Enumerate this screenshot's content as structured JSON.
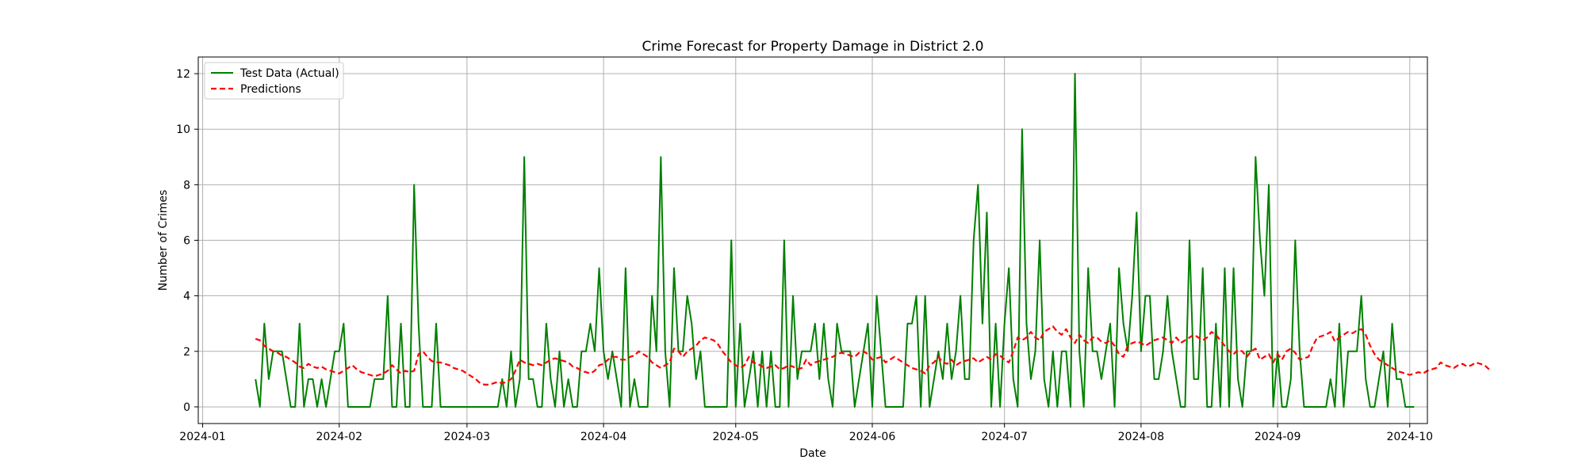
{
  "chart_data": {
    "type": "line",
    "title": "Crime Forecast for Property Damage in District 2.0",
    "xlabel": "Date",
    "ylabel": "Number of Crimes",
    "x_start": "2024-01-13",
    "x_ticks": [
      "2024-01",
      "2024-02",
      "2024-03",
      "2024-04",
      "2024-05",
      "2024-06",
      "2024-07",
      "2024-08",
      "2024-09",
      "2024-10"
    ],
    "y_ticks": [
      0,
      2,
      4,
      6,
      8,
      10,
      12
    ],
    "xlim": [
      "2023-12-31",
      "2024-10-05"
    ],
    "ylim": [
      -0.6,
      12.6
    ],
    "grid": true,
    "legend_position": "top-left",
    "colors": {
      "actual": "#008000",
      "predictions": "#ff0000",
      "grid": "#b0b0b0"
    },
    "series": [
      {
        "name": "Test Data (Actual)",
        "style": "solid",
        "values": [
          1,
          0,
          3,
          1,
          2,
          2,
          2,
          1,
          0,
          0,
          3,
          0,
          1,
          1,
          0,
          1,
          0,
          1,
          2,
          2,
          3,
          0,
          0,
          0,
          0,
          0,
          0,
          1,
          1,
          1,
          4,
          0,
          0,
          3,
          0,
          0,
          8,
          3,
          0,
          0,
          0,
          3,
          0,
          0,
          0,
          0,
          0,
          0,
          0,
          0,
          0,
          0,
          0,
          0,
          0,
          0,
          1,
          0,
          2,
          0,
          1,
          9,
          1,
          1,
          0,
          0,
          3,
          1,
          0,
          2,
          0,
          1,
          0,
          0,
          2,
          2,
          3,
          2,
          5,
          2,
          1,
          2,
          1,
          0,
          5,
          0,
          1,
          0,
          0,
          0,
          4,
          2,
          9,
          2,
          0,
          5,
          2,
          2,
          4,
          3,
          1,
          2,
          0,
          0,
          0,
          0,
          0,
          0,
          6,
          0,
          3,
          0,
          1,
          2,
          0,
          2,
          0,
          2,
          0,
          0,
          6,
          0,
          4,
          1,
          2,
          2,
          2,
          3,
          1,
          3,
          1,
          0,
          3,
          2,
          2,
          2,
          0,
          1,
          2,
          3,
          0,
          4,
          2,
          0,
          0,
          0,
          0,
          0,
          3,
          3,
          4,
          0,
          4,
          0,
          1,
          2,
          1,
          3,
          1,
          2,
          4,
          1,
          1,
          6,
          8,
          3,
          7,
          0,
          3,
          0,
          3,
          5,
          1,
          0,
          10,
          3,
          1,
          2,
          6,
          1,
          0,
          2,
          0,
          2,
          2,
          0,
          12,
          2,
          0,
          5,
          2,
          2,
          1,
          2,
          3,
          0,
          5,
          3,
          2,
          4,
          7,
          2,
          4,
          4,
          1,
          1,
          2,
          4,
          2,
          1,
          0,
          0,
          6,
          1,
          1,
          5,
          0,
          0,
          3,
          0,
          5,
          0,
          5,
          1,
          0,
          2,
          2,
          9,
          6,
          4,
          8,
          0,
          2,
          0,
          0,
          1,
          6,
          2,
          0,
          0,
          0,
          0,
          0,
          0,
          1,
          0,
          3,
          0,
          2,
          2,
          2,
          4,
          1,
          0,
          0,
          1,
          2,
          0,
          3,
          1,
          1,
          0,
          0
        ],
        "end_value": 0
      },
      {
        "name": "Predictions",
        "style": "dashed",
        "values": [
          2.45,
          2.4,
          2.2,
          2.1,
          2.0,
          1.95,
          1.85,
          1.8,
          1.7,
          1.6,
          1.45,
          1.4,
          1.55,
          1.45,
          1.4,
          1.45,
          1.35,
          1.3,
          1.25,
          1.2,
          1.3,
          1.4,
          1.5,
          1.35,
          1.25,
          1.2,
          1.15,
          1.1,
          1.15,
          1.2,
          1.3,
          1.5,
          1.35,
          1.2,
          1.3,
          1.25,
          1.3,
          1.9,
          2.0,
          1.8,
          1.65,
          1.6,
          1.6,
          1.55,
          1.5,
          1.4,
          1.35,
          1.3,
          1.2,
          1.1,
          1.0,
          0.85,
          0.8,
          0.8,
          0.85,
          0.9,
          0.85,
          0.9,
          1.0,
          1.3,
          1.7,
          1.6,
          1.55,
          1.5,
          1.55,
          1.5,
          1.6,
          1.7,
          1.75,
          1.7,
          1.65,
          1.6,
          1.45,
          1.4,
          1.3,
          1.25,
          1.2,
          1.3,
          1.5,
          1.55,
          1.7,
          1.8,
          1.8,
          1.7,
          1.7,
          1.8,
          1.85,
          2.0,
          1.9,
          1.8,
          1.6,
          1.5,
          1.4,
          1.5,
          1.6,
          2.1,
          2.0,
          1.8,
          2.0,
          2.1,
          2.2,
          2.4,
          2.5,
          2.45,
          2.4,
          2.25,
          2.0,
          1.8,
          1.6,
          1.5,
          1.4,
          1.5,
          1.8,
          1.6,
          1.55,
          1.45,
          1.4,
          1.45,
          1.5,
          1.35,
          1.4,
          1.5,
          1.45,
          1.35,
          1.4,
          1.7,
          1.5,
          1.6,
          1.65,
          1.7,
          1.75,
          1.8,
          1.9,
          1.95,
          1.9,
          1.85,
          1.8,
          1.95,
          2.0,
          1.9,
          1.7,
          1.75,
          1.8,
          1.6,
          1.7,
          1.8,
          1.7,
          1.6,
          1.5,
          1.4,
          1.35,
          1.3,
          1.2,
          1.5,
          1.6,
          1.8,
          1.6,
          1.55,
          1.7,
          1.5,
          1.6,
          1.65,
          1.7,
          1.75,
          1.6,
          1.7,
          1.8,
          1.7,
          1.9,
          1.85,
          1.7,
          1.6,
          2.0,
          2.5,
          2.4,
          2.5,
          2.7,
          2.5,
          2.4,
          2.7,
          2.8,
          2.9,
          2.7,
          2.6,
          2.8,
          2.5,
          2.3,
          2.6,
          2.4,
          2.3,
          2.5,
          2.5,
          2.35,
          2.3,
          2.4,
          2.2,
          1.9,
          1.8,
          2.2,
          2.3,
          2.35,
          2.3,
          2.2,
          2.3,
          2.4,
          2.45,
          2.5,
          2.4,
          2.3,
          2.5,
          2.3,
          2.4,
          2.5,
          2.6,
          2.5,
          2.4,
          2.5,
          2.7,
          2.6,
          2.4,
          2.2,
          2.0,
          1.9,
          2.05,
          2.0,
          1.8,
          2.0,
          2.1,
          1.7,
          1.8,
          1.9,
          1.6,
          1.9,
          1.7,
          2.0,
          2.1,
          1.95,
          1.7,
          1.75,
          1.8,
          2.2,
          2.5,
          2.55,
          2.6,
          2.7,
          2.35,
          2.5,
          2.6,
          2.7,
          2.65,
          2.75,
          2.8,
          2.6,
          2.2,
          1.9,
          1.7,
          1.6,
          1.5,
          1.4,
          1.3,
          1.25,
          1.2,
          1.15,
          1.2,
          1.25,
          1.2,
          1.3,
          1.35,
          1.4,
          1.6,
          1.5,
          1.45,
          1.4,
          1.5,
          1.55,
          1.45,
          1.5,
          1.6,
          1.55,
          1.5,
          1.35
        ]
      }
    ]
  }
}
